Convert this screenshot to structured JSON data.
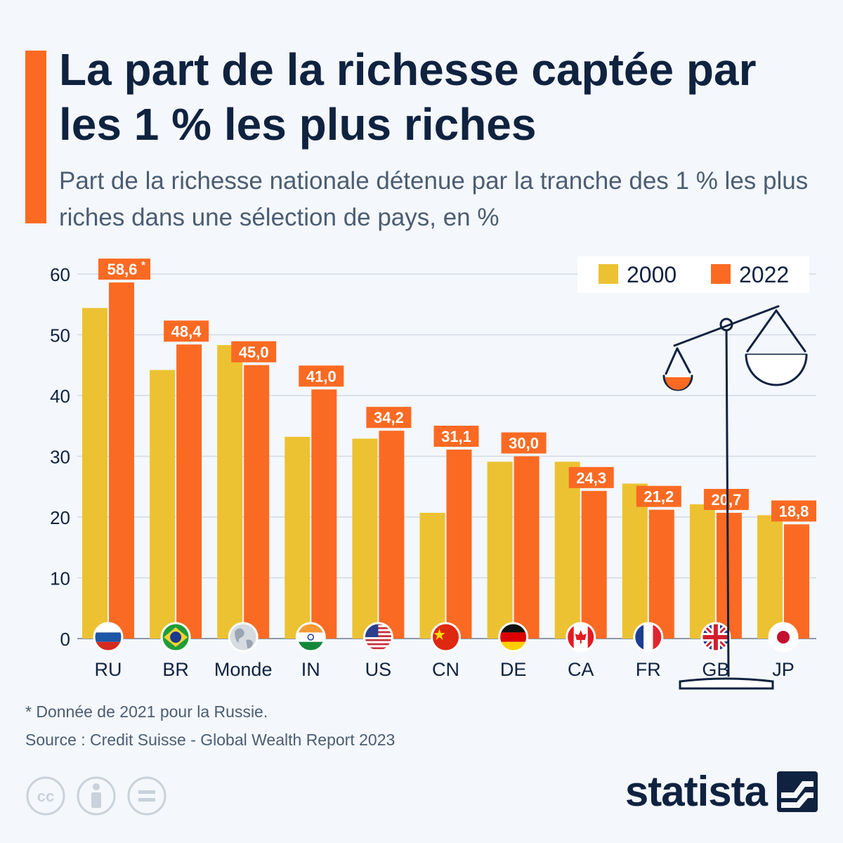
{
  "title": "La part de la richesse captée par les 1 % les plus riches",
  "subtitle": "Part de la richesse nationale détenue par la tranche des 1 % les plus riches dans une sélection de pays, en %",
  "colors": {
    "accent": "#fb6a22",
    "series_2000": "#ecc232",
    "series_2022": "#fb6a22",
    "text": "#0f2240",
    "muted": "#4b5d73"
  },
  "chart_data": {
    "type": "bar",
    "categories": [
      "RU",
      "BR",
      "Monde",
      "IN",
      "US",
      "CN",
      "DE",
      "CA",
      "FR",
      "GB",
      "JP"
    ],
    "flags": [
      "flag-russia-icon",
      "flag-brazil-icon",
      "globe-icon",
      "flag-india-icon",
      "flag-usa-icon",
      "flag-china-icon",
      "flag-germany-icon",
      "flag-canada-icon",
      "flag-france-icon",
      "flag-uk-icon",
      "flag-japan-icon"
    ],
    "series": [
      {
        "name": "2000",
        "values": [
          54.4,
          44.2,
          48.3,
          33.2,
          32.9,
          20.7,
          29.1,
          29.1,
          25.5,
          22.1,
          20.3
        ]
      },
      {
        "name": "2022",
        "values": [
          58.6,
          48.4,
          45.0,
          41.0,
          34.2,
          31.1,
          30.0,
          24.3,
          21.2,
          20.7,
          18.8
        ]
      }
    ],
    "data_labels": [
      "58,6",
      "48,4",
      "45,0",
      "41,0",
      "34,2",
      "31,1",
      "30,0",
      "24,3",
      "21,2",
      "20,7",
      "18,8"
    ],
    "label_footnote": "*",
    "y_ticks": [
      0,
      10,
      20,
      30,
      40,
      50,
      60
    ],
    "ylim": [
      0,
      60
    ],
    "grid": true,
    "legend_position": "top-right",
    "decoration": "scale-icon"
  },
  "footnote": "* Donnée de 2021 pour la Russie.",
  "source": "Source : Credit Suisse - Global Wealth Report 2023",
  "license_icons": [
    "cc-icon",
    "attribution-icon",
    "no-derivatives-icon"
  ],
  "brand": {
    "name": "statista",
    "logo": "statista-logo-icon"
  }
}
